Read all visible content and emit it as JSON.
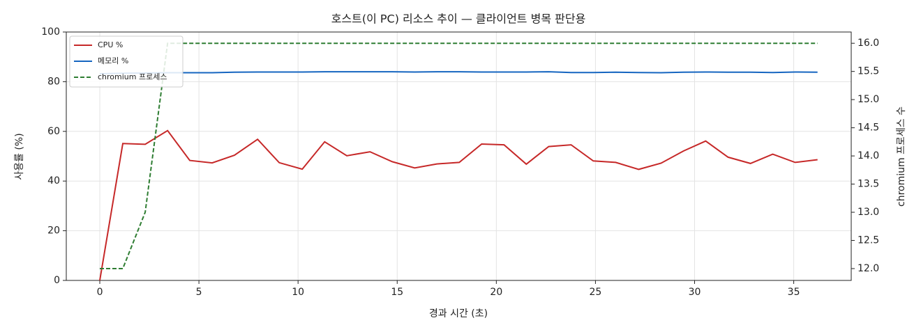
{
  "chart_data": {
    "type": "line",
    "title": "호스트(이 PC) 리소스 추이 — 클라이언트 병목 판단용",
    "xlabel": "경과 시간 (초)",
    "ylabel": "사용률 (%)",
    "y2label": "chromium 프로세스 수",
    "x": [
      0,
      1.16,
      2.29,
      3.42,
      4.54,
      5.67,
      6.79,
      7.96,
      9.05,
      10.21,
      11.34,
      12.46,
      13.63,
      14.75,
      15.88,
      17.0,
      18.13,
      19.26,
      20.39,
      21.51,
      22.64,
      23.77,
      24.89,
      26.02,
      27.18,
      28.31,
      29.44,
      30.56,
      31.69,
      32.82,
      33.94,
      35.07,
      36.2
    ],
    "series": [
      {
        "name": "CPU %",
        "color": "#c62828",
        "linestyle": "solid",
        "values": [
          0,
          55.1,
          54.8,
          60.3,
          48.3,
          47.3,
          50.4,
          56.8,
          47.4,
          44.8,
          55.8,
          50.2,
          51.8,
          47.8,
          45.3,
          46.9,
          47.5,
          54.9,
          54.6,
          46.8,
          53.9,
          54.6,
          48.1,
          47.5,
          44.7,
          47.2,
          52.1,
          56.1,
          49.6,
          47.1,
          50.8,
          47.5,
          48.6
        ]
      },
      {
        "name": "메모리 %",
        "color": "#1565c0",
        "linestyle": "solid",
        "values": [
          83.2,
          83.4,
          83.5,
          83.6,
          83.6,
          83.6,
          83.8,
          83.9,
          83.9,
          83.9,
          84.0,
          84.0,
          84.0,
          84.0,
          83.9,
          84.0,
          84.0,
          83.9,
          83.9,
          83.9,
          84.0,
          83.7,
          83.7,
          83.8,
          83.7,
          83.6,
          83.8,
          83.9,
          83.8,
          83.8,
          83.7,
          83.9,
          83.8
        ]
      },
      {
        "name": "chromium 프로세스",
        "color": "#2e7d32",
        "linestyle": "dashed",
        "axis": "y2",
        "values": [
          12,
          12,
          13,
          16,
          16,
          16,
          16,
          16,
          16,
          16,
          16,
          16,
          16,
          16,
          16,
          16,
          16,
          16,
          16,
          16,
          16,
          16,
          16,
          16,
          16,
          16,
          16,
          16,
          16,
          16,
          16,
          16,
          16
        ]
      }
    ],
    "xlim": [
      -1.69,
      37.9
    ],
    "xticks": [
      0,
      5,
      10,
      15,
      20,
      25,
      30,
      35
    ],
    "ylim": [
      0,
      100
    ],
    "yticks": [
      0,
      20,
      40,
      60,
      80,
      100
    ],
    "y2lim": [
      11.79,
      16.2
    ],
    "y2ticks": [
      {
        "value": 12,
        "label": "12.0"
      },
      {
        "value": 12.5,
        "label": "12.5"
      },
      {
        "value": 13,
        "label": "13.0"
      },
      {
        "value": 13.5,
        "label": "13.5"
      },
      {
        "value": 14,
        "label": "14.0"
      },
      {
        "value": 14.5,
        "label": "14.5"
      },
      {
        "value": 15,
        "label": "15.0"
      },
      {
        "value": 15.5,
        "label": "15.5"
      },
      {
        "value": 16,
        "label": "16.0"
      }
    ],
    "grid": true,
    "legend": "upper left"
  }
}
